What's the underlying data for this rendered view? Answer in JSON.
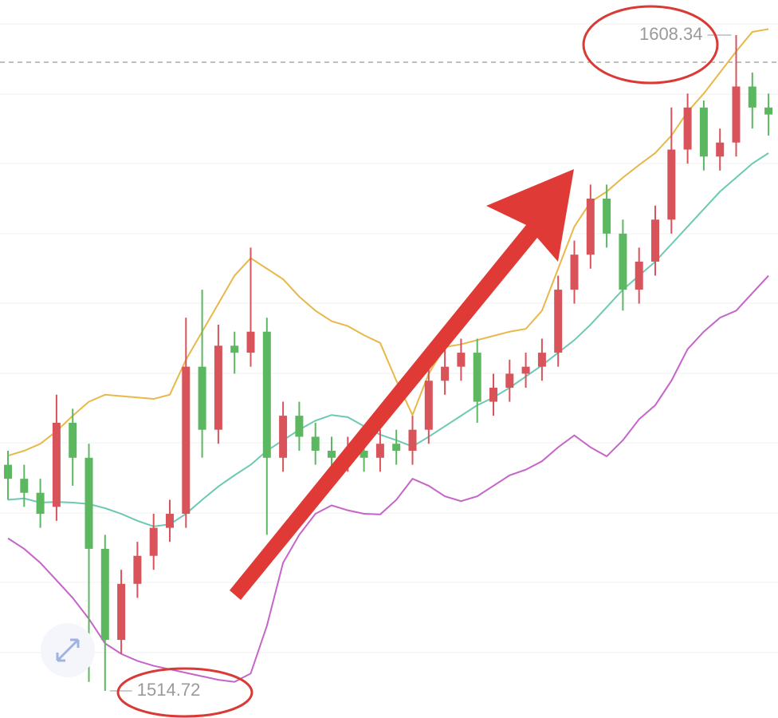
{
  "chart_data": {
    "type": "candlestick",
    "open": [
      1547,
      1545,
      1543,
      1541,
      1553,
      1548,
      1535,
      1522,
      1530,
      1534,
      1538,
      1540,
      1561,
      1552,
      1564,
      1563,
      1566,
      1548,
      1554,
      1551,
      1549,
      1548,
      1549,
      1548,
      1550,
      1549,
      1552,
      1559,
      1561,
      1563,
      1556,
      1558,
      1560,
      1561,
      1563,
      1572,
      1577,
      1585,
      1580,
      1572,
      1576,
      1582,
      1592,
      1598,
      1591,
      1593,
      1601,
      1598
    ],
    "high": [
      1549,
      1547,
      1545,
      1557,
      1555,
      1550,
      1537,
      1532,
      1536,
      1540,
      1542,
      1568,
      1572,
      1567,
      1566,
      1578,
      1568,
      1556,
      1556,
      1553,
      1551,
      1551,
      1551,
      1552,
      1552,
      1554,
      1561,
      1564,
      1565,
      1565,
      1560,
      1562,
      1563,
      1565,
      1574,
      1579,
      1587,
      1587,
      1582,
      1578,
      1584,
      1598,
      1600,
      1599,
      1595,
      1608.34,
      1603,
      1600
    ],
    "low": [
      1542,
      1541,
      1538,
      1539,
      1544,
      1516,
      1514.72,
      1520,
      1528,
      1532,
      1536,
      1538,
      1548,
      1550,
      1560,
      1561,
      1537,
      1546,
      1549,
      1547,
      1546,
      1546,
      1546,
      1546,
      1547,
      1547,
      1550,
      1557,
      1559,
      1553,
      1554,
      1556,
      1558,
      1559,
      1561,
      1570,
      1575,
      1578,
      1569,
      1570,
      1574,
      1580,
      1590,
      1589,
      1589,
      1591,
      1595,
      1594
    ],
    "close": [
      1545,
      1543,
      1540,
      1553,
      1548,
      1535,
      1522,
      1530,
      1534,
      1538,
      1540,
      1561,
      1552,
      1564,
      1563,
      1566,
      1548,
      1554,
      1551,
      1549,
      1548,
      1549,
      1548,
      1550,
      1549,
      1552,
      1559,
      1561,
      1563,
      1556,
      1558,
      1560,
      1561,
      1563,
      1572,
      1577,
      1585,
      1580,
      1572,
      1576,
      1582,
      1592,
      1598,
      1591,
      1593,
      1601,
      1598,
      1597
    ],
    "up_color": "#d9545a",
    "down_color": "#5cb860",
    "series": [
      {
        "color": "#e8b84a",
        "values": [
          1548.3,
          1549,
          1550,
          1551.8,
          1554,
          1556,
          1557,
          1556.8,
          1556.6,
          1556.4,
          1557,
          1562,
          1566,
          1570,
          1574,
          1576.5,
          1575,
          1573.5,
          1571,
          1569,
          1567.5,
          1566.8,
          1565.5,
          1564.4,
          1559,
          1554.1,
          1560,
          1563.8,
          1564.2,
          1564.8,
          1565.4,
          1566,
          1566.4,
          1569,
          1575,
          1581,
          1584.5,
          1586,
          1588,
          1589.8,
          1591.5,
          1594,
          1597.4,
          1600,
          1603,
          1606,
          1608.8,
          1609.2
        ]
      },
      {
        "color": "#6cc9b4",
        "values": [
          1542,
          1542.2,
          1541.6,
          1541.7,
          1541.6,
          1541.4,
          1540.8,
          1540,
          1539,
          1538.2,
          1538.5,
          1540,
          1542,
          1543.9,
          1545.5,
          1547,
          1549,
          1550.5,
          1552,
          1553.3,
          1554.1,
          1553.8,
          1552.5,
          1551.3,
          1550.5,
          1549.6,
          1551,
          1552.5,
          1554,
          1555.5,
          1556.6,
          1558,
          1559.6,
          1561.2,
          1563,
          1564.8,
          1567,
          1569.5,
          1572,
          1574,
          1576,
          1578.5,
          1581,
          1583.5,
          1586,
          1588,
          1590,
          1591.5
        ]
      },
      {
        "color": "#c564c9",
        "values": [
          1536.5,
          1535,
          1533,
          1530.5,
          1528,
          1525,
          1521.5,
          1520,
          1519,
          1518.3,
          1517.8,
          1517.3,
          1516.8,
          1516.3,
          1516,
          1517.2,
          1524,
          1533,
          1537,
          1540,
          1541.2,
          1540.5,
          1540,
          1539.9,
          1542,
          1545,
          1544,
          1542.5,
          1541.8,
          1542.5,
          1544,
          1545.5,
          1546.3,
          1547.5,
          1549.5,
          1551.2,
          1549.5,
          1548.2,
          1550.5,
          1553.5,
          1555.5,
          1559,
          1563.5,
          1566,
          1568,
          1569,
          1571.5,
          1574
        ]
      }
    ]
  }
}
